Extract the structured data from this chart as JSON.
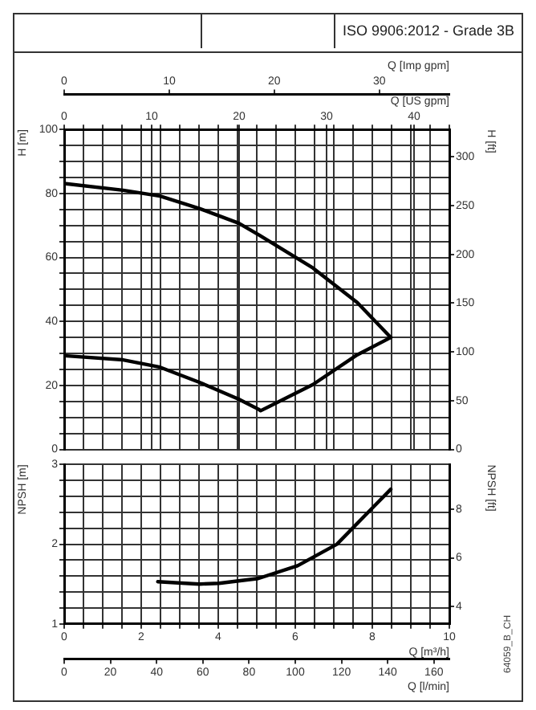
{
  "chart_data": [
    {
      "type": "line",
      "title": "ISO 9906:2012 - Grade 3B",
      "xlabel": "Q [US gpm]",
      "ylabel": "H [m]",
      "y2label": "H [ft]",
      "x2label": "Q [Imp gpm]",
      "grid": true,
      "legend": false,
      "marker": "none",
      "xlim": [
        0,
        44.03
      ],
      "xticks": [
        0,
        {
          "value": 2.2,
          "label": null
        },
        {
          "value": 4.4,
          "label": null
        },
        {
          "value": 6.6,
          "label": null
        },
        {
          "value": 8.81,
          "label": null
        },
        10,
        {
          "value": 11.01,
          "label": null
        },
        {
          "value": 13.21,
          "label": null
        },
        {
          "value": 15.41,
          "label": null
        },
        {
          "value": 17.61,
          "label": null
        },
        {
          "value": 19.81,
          "label": null
        },
        20,
        {
          "value": 22.02,
          "label": null
        },
        {
          "value": 24.22,
          "label": null
        },
        {
          "value": 26.42,
          "label": null
        },
        {
          "value": 28.62,
          "label": null
        },
        30,
        {
          "value": 30.82,
          "label": null
        },
        {
          "value": 33.02,
          "label": null
        },
        {
          "value": 35.22,
          "label": null
        },
        {
          "value": 37.43,
          "label": null
        },
        {
          "value": 39.63,
          "label": null
        },
        40,
        {
          "value": 41.83,
          "label": null
        },
        {
          "value": 44.03,
          "label": null
        }
      ],
      "x2lim": [
        0,
        36.66
      ],
      "x2ticks": [
        0,
        10,
        20,
        30
      ],
      "ylim": [
        0,
        100
      ],
      "yticks": [
        0,
        {
          "value": 5,
          "label": null
        },
        {
          "value": 10,
          "label": null
        },
        {
          "value": 15,
          "label": null
        },
        20,
        {
          "value": 25,
          "label": null
        },
        {
          "value": 30,
          "label": null
        },
        {
          "value": 35,
          "label": null
        },
        40,
        {
          "value": 45,
          "label": null
        },
        {
          "value": 50,
          "label": null
        },
        {
          "value": 55,
          "label": null
        },
        60,
        {
          "value": 65,
          "label": null
        },
        {
          "value": 70,
          "label": null
        },
        {
          "value": 75,
          "label": null
        },
        80,
        {
          "value": 85,
          "label": null
        },
        {
          "value": 90,
          "label": null
        },
        {
          "value": 95,
          "label": null
        },
        100
      ],
      "y2lim": [
        0,
        328.1
      ],
      "y2ticks": [
        0,
        50,
        100,
        150,
        200,
        250,
        300
      ],
      "series": [
        {
          "color": "#000000",
          "x": [
            0,
            6.74,
            10.96,
            15.45,
            19.95,
            22.28,
            28.44,
            33.51,
            37.34
          ],
          "values": [
            83.1,
            81,
            79.2,
            75.3,
            70.7,
            67,
            56.7,
            45.9,
            35
          ]
        },
        {
          "color": "#000000",
          "x": [
            0,
            6.74,
            10.96,
            15.45,
            19.95,
            22.19,
            22.46,
            28.44,
            33.51,
            37.34
          ],
          "values": [
            29.3,
            28,
            25.7,
            21,
            15.7,
            12.6,
            12.1,
            20.3,
            29.6,
            35
          ]
        }
      ]
    },
    {
      "type": "line",
      "xlabel": "Q [m³/h]",
      "x2label": "Q [l/min]",
      "ylabel": "NPSH [m]",
      "y2label": "NPSH [ft]",
      "grid": true,
      "legend": false,
      "marker": "none",
      "annotations": [
        "64059_B_CH"
      ],
      "xlim": [
        0,
        10
      ],
      "xticks": [
        0,
        {
          "value": 0.5,
          "label": null
        },
        {
          "value": 1,
          "label": null
        },
        {
          "value": 1.5,
          "label": null
        },
        2,
        {
          "value": 2.5,
          "label": null
        },
        {
          "value": 3,
          "label": null
        },
        {
          "value": 3.5,
          "label": null
        },
        4,
        {
          "value": 4.5,
          "label": null
        },
        {
          "value": 5,
          "label": null
        },
        {
          "value": 5.5,
          "label": null
        },
        6,
        {
          "value": 6.5,
          "label": null
        },
        {
          "value": 7,
          "label": null
        },
        {
          "value": 7.5,
          "label": null
        },
        8,
        {
          "value": 8.5,
          "label": null
        },
        {
          "value": 9,
          "label": null
        },
        {
          "value": 9.5,
          "label": null
        },
        10
      ],
      "x2lim": [
        0,
        166.67
      ],
      "x2ticks": [
        0,
        20,
        40,
        60,
        80,
        100,
        120,
        140,
        160
      ],
      "ylim": [
        1,
        3
      ],
      "yticks": [
        1,
        {
          "value": 1.2,
          "label": null
        },
        {
          "value": 1.4,
          "label": null
        },
        {
          "value": 1.6,
          "label": null
        },
        {
          "value": 1.8,
          "label": null
        },
        2,
        {
          "value": 2.2,
          "label": null
        },
        {
          "value": 2.4,
          "label": null
        },
        {
          "value": 2.6,
          "label": null
        },
        {
          "value": 2.8,
          "label": null
        },
        3
      ],
      "y2lim": [
        3.281,
        9.843
      ],
      "y2ticks": [
        4,
        6,
        8
      ],
      "series": [
        {
          "color": "#000000",
          "x": [
            2.43,
            3.51,
            4.02,
            5.04,
            6.06,
            7.08,
            7.97,
            8.48
          ],
          "values": [
            1.53,
            1.5,
            1.51,
            1.57,
            1.73,
            2.0,
            2.44,
            2.69
          ]
        }
      ]
    }
  ]
}
